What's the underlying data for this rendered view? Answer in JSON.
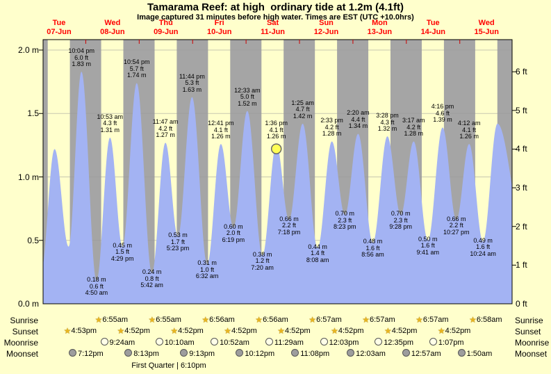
{
  "title": "Tamarama Reef: at high  ordinary tide at 1.2m (4.1ft)",
  "subtitle": "Image captured 31 minutes before high water. Times are EST (UTC +10.0hrs)",
  "colors": {
    "page_bg": "#ffffcc",
    "day_band": "#ffffcc",
    "night_band": "#a5a5a5",
    "tide_fill": "#a3b3f3",
    "grid_line": "#999999",
    "day_label_red": "#ff0000",
    "current_marker_fill": "#ffff55",
    "current_marker_stroke": "#666666"
  },
  "chart_data": {
    "type": "area",
    "title": "Tamarama Reef tide height over time",
    "x_unit": "hours from Tue 07-Jun 00:00 EST",
    "x_range_hours": [
      4.83,
      215.5
    ],
    "ylim_m": [
      0.0,
      2.08
    ],
    "grid": "horizontal at 0.5 m steps",
    "day_axis": [
      {
        "name": "Tue",
        "date": "07-Jun"
      },
      {
        "name": "Wed",
        "date": "08-Jun"
      },
      {
        "name": "Thu",
        "date": "09-Jun"
      },
      {
        "name": "Fri",
        "date": "10-Jun"
      },
      {
        "name": "Sat",
        "date": "11-Jun"
      },
      {
        "name": "Sun",
        "date": "12-Jun"
      },
      {
        "name": "Mon",
        "date": "13-Jun"
      },
      {
        "name": "Tue",
        "date": "14-Jun"
      },
      {
        "name": "Wed",
        "date": "15-Jun"
      }
    ],
    "y_axis_left_m": [
      {
        "text": "2.0 m",
        "m": 2.0
      },
      {
        "text": "1.5",
        "m": 1.5
      },
      {
        "text": "1.0 m",
        "m": 1.0
      },
      {
        "text": "0.5",
        "m": 0.5
      },
      {
        "text": "0.0 m",
        "m": 0.0
      }
    ],
    "y_axis_right_ft": [
      {
        "text": "6 ft",
        "ft": 6
      },
      {
        "text": "5 ft",
        "ft": 5
      },
      {
        "text": "4 ft",
        "ft": 4
      },
      {
        "text": "3 ft",
        "ft": 3
      },
      {
        "text": "2 ft",
        "ft": 2
      },
      {
        "text": "1 ft",
        "ft": 1
      },
      {
        "text": "0 ft",
        "ft": 0
      }
    ],
    "tide_extremes": [
      {
        "t": 3.9,
        "type": "low",
        "height_m": 0.25,
        "labeled": false
      },
      {
        "t": 10.0,
        "type": "high",
        "height_m": 1.22,
        "labeled": false
      },
      {
        "t": 16.3,
        "type": "low",
        "height_m": 0.45,
        "labeled": false
      },
      {
        "t": 22.07,
        "type": "high",
        "height_m": 1.83,
        "labeled": true,
        "time": "10:04 pm",
        "ft": "6.0 ft",
        "m": "1.83 m"
      },
      {
        "t": 28.83,
        "type": "low",
        "height_m": 0.18,
        "labeled": true,
        "time": "4:50 am",
        "ft": "0.6 ft",
        "m": "0.18 m"
      },
      {
        "t": 34.88,
        "type": "high",
        "height_m": 1.31,
        "labeled": true,
        "time": "10:53 am",
        "ft": "4.3 ft",
        "m": "1.31 m"
      },
      {
        "t": 40.48,
        "type": "low",
        "height_m": 0.45,
        "labeled": true,
        "time": "4:29 pm",
        "ft": "1.5 ft",
        "m": "0.45 m"
      },
      {
        "t": 46.9,
        "type": "high",
        "height_m": 1.74,
        "labeled": true,
        "time": "10:54 pm",
        "ft": "5.7 ft",
        "m": "1.74 m"
      },
      {
        "t": 53.7,
        "type": "low",
        "height_m": 0.24,
        "labeled": true,
        "time": "5:42 am",
        "ft": "0.8 ft",
        "m": "0.24 m"
      },
      {
        "t": 59.78,
        "type": "high",
        "height_m": 1.27,
        "labeled": true,
        "time": "11:47 am",
        "ft": "4.2 ft",
        "m": "1.27 m"
      },
      {
        "t": 65.38,
        "type": "low",
        "height_m": 0.53,
        "labeled": true,
        "time": "5:23 pm",
        "ft": "1.7 ft",
        "m": "0.53 m"
      },
      {
        "t": 71.73,
        "type": "high",
        "height_m": 1.63,
        "labeled": true,
        "time": "11:44 pm",
        "ft": "5.3 ft",
        "m": "1.63 m"
      },
      {
        "t": 78.53,
        "type": "low",
        "height_m": 0.31,
        "labeled": true,
        "time": "6:32 am",
        "ft": "1.0 ft",
        "m": "0.31 m"
      },
      {
        "t": 84.68,
        "type": "high",
        "height_m": 1.26,
        "labeled": true,
        "time": "12:41 pm",
        "ft": "4.1 ft",
        "m": "1.26 m"
      },
      {
        "t": 90.32,
        "type": "low",
        "height_m": 0.6,
        "labeled": true,
        "time": "6:19 pm",
        "ft": "2.0 ft",
        "m": "0.60 m"
      },
      {
        "t": 96.55,
        "type": "high",
        "height_m": 1.52,
        "labeled": true,
        "time": "12:33 am",
        "ft": "5.0 ft",
        "m": "1.52 m"
      },
      {
        "t": 103.33,
        "type": "low",
        "height_m": 0.38,
        "labeled": true,
        "time": "7:20 am",
        "ft": "1.2 ft",
        "m": "0.38 m"
      },
      {
        "t": 109.6,
        "type": "high",
        "height_m": 1.26,
        "labeled": true,
        "time": "1:36 pm",
        "ft": "4.1 ft",
        "m": "1.26 m",
        "current": true
      },
      {
        "t": 115.3,
        "type": "low",
        "height_m": 0.66,
        "labeled": true,
        "time": "7:18 pm",
        "ft": "2.2 ft",
        "m": "0.66 m"
      },
      {
        "t": 121.42,
        "type": "high",
        "height_m": 1.42,
        "labeled": true,
        "time": "1:25 am",
        "ft": "4.7 ft",
        "m": "1.42 m"
      },
      {
        "t": 128.13,
        "type": "low",
        "height_m": 0.44,
        "labeled": true,
        "time": "8:08 am",
        "ft": "1.4 ft",
        "m": "0.44 m"
      },
      {
        "t": 134.55,
        "type": "high",
        "height_m": 1.28,
        "labeled": true,
        "time": "2:33 pm",
        "ft": "4.2 ft",
        "m": "1.28 m"
      },
      {
        "t": 140.38,
        "type": "low",
        "height_m": 0.7,
        "labeled": true,
        "time": "8:23 pm",
        "ft": "2.3 ft",
        "m": "0.70 m"
      },
      {
        "t": 146.33,
        "type": "high",
        "height_m": 1.34,
        "labeled": true,
        "time": "2:20 am",
        "ft": "4.4 ft",
        "m": "1.34 m"
      },
      {
        "t": 152.93,
        "type": "low",
        "height_m": 0.48,
        "labeled": true,
        "time": "8:56 am",
        "ft": "1.6 ft",
        "m": "0.48 m"
      },
      {
        "t": 159.47,
        "type": "high",
        "height_m": 1.32,
        "labeled": true,
        "time": "3:28 pm",
        "ft": "4.3 ft",
        "m": "1.32 m"
      },
      {
        "t": 165.47,
        "type": "low",
        "height_m": 0.7,
        "labeled": true,
        "time": "9:28 pm",
        "ft": "2.3 ft",
        "m": "0.70 m"
      },
      {
        "t": 171.28,
        "type": "high",
        "height_m": 1.28,
        "labeled": true,
        "time": "3:17 am",
        "ft": "4.2 ft",
        "m": "1.28 m"
      },
      {
        "t": 177.68,
        "type": "low",
        "height_m": 0.5,
        "labeled": true,
        "time": "9:41 am",
        "ft": "1.6 ft",
        "m": "0.50 m"
      },
      {
        "t": 184.27,
        "type": "high",
        "height_m": 1.39,
        "labeled": true,
        "time": "4:16 pm",
        "ft": "4.6 ft",
        "m": "1.39 m"
      },
      {
        "t": 190.45,
        "type": "low",
        "height_m": 0.66,
        "labeled": true,
        "time": "10:27 pm",
        "ft": "2.2 ft",
        "m": "0.66 m"
      },
      {
        "t": 196.2,
        "type": "high",
        "height_m": 1.26,
        "labeled": true,
        "time": "4:12 am",
        "ft": "4.1 ft",
        "m": "1.26 m"
      },
      {
        "t": 202.4,
        "type": "low",
        "height_m": 0.49,
        "labeled": true,
        "time": "10:24 am",
        "ft": "1.6 ft",
        "m": "0.49 m"
      },
      {
        "t": 208.9,
        "type": "high",
        "height_m": 1.42,
        "labeled": false
      },
      {
        "t": 221.0,
        "type": "low",
        "height_m": 0.55,
        "labeled": false
      }
    ],
    "current_marker": {
      "t": 109.6,
      "height_m": 1.26
    }
  },
  "astro": {
    "rows": [
      {
        "id": "sunrise",
        "label": "Sunrise",
        "icon": "star",
        "events": [
          {
            "t": 30.92,
            "text": "6:55am"
          },
          {
            "t": 54.92,
            "text": "6:55am"
          },
          {
            "t": 78.93,
            "text": "6:56am"
          },
          {
            "t": 102.93,
            "text": "6:56am"
          },
          {
            "t": 126.95,
            "text": "6:57am"
          },
          {
            "t": 150.95,
            "text": "6:57am"
          },
          {
            "t": 174.95,
            "text": "6:57am"
          },
          {
            "t": 198.97,
            "text": "6:58am"
          }
        ]
      },
      {
        "id": "sunset",
        "label": "Sunset",
        "icon": "star",
        "events": [
          {
            "t": 16.88,
            "text": "4:53pm"
          },
          {
            "t": 40.87,
            "text": "4:52pm"
          },
          {
            "t": 64.87,
            "text": "4:52pm"
          },
          {
            "t": 88.87,
            "text": "4:52pm"
          },
          {
            "t": 112.87,
            "text": "4:52pm"
          },
          {
            "t": 136.87,
            "text": "4:52pm"
          },
          {
            "t": 160.87,
            "text": "4:52pm"
          },
          {
            "t": 184.87,
            "text": "4:52pm"
          }
        ]
      },
      {
        "id": "moonrise",
        "label": "Moonrise",
        "icon": "moon-light",
        "events": [
          {
            "t": 33.4,
            "text": "9:24am"
          },
          {
            "t": 58.17,
            "text": "10:10am"
          },
          {
            "t": 82.87,
            "text": "10:52am"
          },
          {
            "t": 107.48,
            "text": "11:29am"
          },
          {
            "t": 132.05,
            "text": "12:03pm"
          },
          {
            "t": 156.58,
            "text": "12:35pm"
          },
          {
            "t": 181.12,
            "text": "1:07pm"
          }
        ]
      },
      {
        "id": "moonset",
        "label": "Moonset",
        "icon": "moon-dark",
        "events": [
          {
            "t": 19.2,
            "text": "7:12pm"
          },
          {
            "t": 44.22,
            "text": "8:13pm"
          },
          {
            "t": 69.22,
            "text": "9:13pm"
          },
          {
            "t": 94.2,
            "text": "10:12pm"
          },
          {
            "t": 119.13,
            "text": "11:08pm"
          },
          {
            "t": 144.05,
            "text": "12:03am"
          },
          {
            "t": 168.95,
            "text": "12:57am"
          },
          {
            "t": 193.83,
            "text": "1:50am"
          }
        ]
      }
    ],
    "footer": "First Quarter | 6:10pm"
  }
}
